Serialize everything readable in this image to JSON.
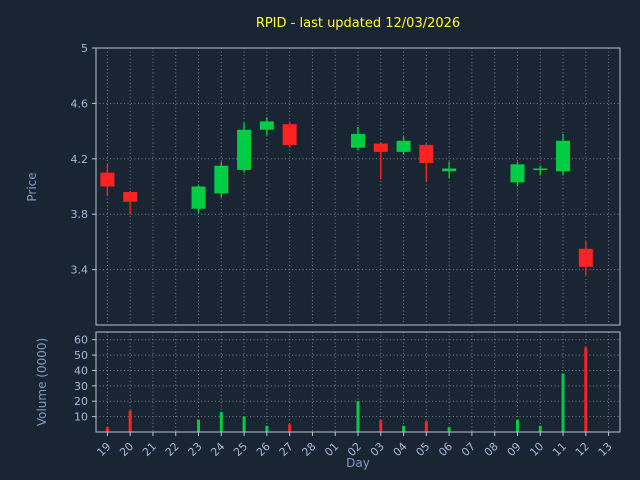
{
  "title": "RPID - last updated 12/03/2026",
  "colors": {
    "background": "#1a2533",
    "title": "#ffff33",
    "tick_label": "#a5b8d6",
    "axis_label": "#7f9cc4",
    "grid": "#8b98a8",
    "spine": "#b9c3cf",
    "up": "#00cc44",
    "down": "#ff2222"
  },
  "chart_data": {
    "type": "candlestick",
    "title": "RPID - last updated 12/03/2026",
    "xlabel": "Day",
    "price_ylabel": "Price",
    "volume_ylabel": "Volume (0000)",
    "grid": true,
    "x_categories": [
      "19",
      "20",
      "21",
      "22",
      "23",
      "24",
      "25",
      "26",
      "27",
      "28",
      "01",
      "02",
      "03",
      "04",
      "05",
      "06",
      "07",
      "08",
      "09",
      "10",
      "11",
      "12",
      "13"
    ],
    "price_ylim": [
      3.0,
      5.0
    ],
    "price_tick_values": [
      5,
      4.6,
      4.2,
      3.8,
      3.4
    ],
    "volume_ylim": [
      0,
      65
    ],
    "volume_tick_values": [
      60,
      50,
      40,
      30,
      20,
      10
    ],
    "candles": [
      {
        "day": "19",
        "open": 4.1,
        "high": 4.16,
        "low": 3.93,
        "close": 4.0,
        "volume": 3
      },
      {
        "day": "20",
        "open": 3.96,
        "high": 3.97,
        "low": 3.8,
        "close": 3.89,
        "volume": 14
      },
      {
        "day": "23",
        "open": 3.84,
        "high": 4.01,
        "low": 3.81,
        "close": 4.0,
        "volume": 8
      },
      {
        "day": "24",
        "open": 3.95,
        "high": 4.18,
        "low": 3.92,
        "close": 4.15,
        "volume": 13
      },
      {
        "day": "25",
        "open": 4.12,
        "high": 4.46,
        "low": 4.1,
        "close": 4.41,
        "volume": 10
      },
      {
        "day": "26",
        "open": 4.41,
        "high": 4.5,
        "low": 4.37,
        "close": 4.47,
        "volume": 4
      },
      {
        "day": "27",
        "open": 4.45,
        "high": 4.46,
        "low": 4.28,
        "close": 4.3,
        "volume": 5
      },
      {
        "day": "02",
        "open": 4.28,
        "high": 4.43,
        "low": 4.26,
        "close": 4.38,
        "volume": 20
      },
      {
        "day": "03",
        "open": 4.31,
        "high": 4.32,
        "low": 4.05,
        "close": 4.25,
        "volume": 8
      },
      {
        "day": "04",
        "open": 4.25,
        "high": 4.36,
        "low": 4.23,
        "close": 4.33,
        "volume": 4
      },
      {
        "day": "05",
        "open": 4.3,
        "high": 4.31,
        "low": 4.04,
        "close": 4.17,
        "volume": 7
      },
      {
        "day": "06",
        "open": 4.11,
        "high": 4.18,
        "low": 4.06,
        "close": 4.13,
        "volume": 3
      },
      {
        "day": "09",
        "open": 4.03,
        "high": 4.18,
        "low": 4.0,
        "close": 4.16,
        "volume": 8
      },
      {
        "day": "10",
        "open": 4.12,
        "high": 4.15,
        "low": 4.08,
        "close": 4.13,
        "volume": 4
      },
      {
        "day": "11",
        "open": 4.11,
        "high": 4.38,
        "low": 4.08,
        "close": 4.33,
        "volume": 38
      },
      {
        "day": "12",
        "open": 3.55,
        "high": 3.6,
        "low": 3.36,
        "close": 3.42,
        "volume": 55
      }
    ]
  }
}
